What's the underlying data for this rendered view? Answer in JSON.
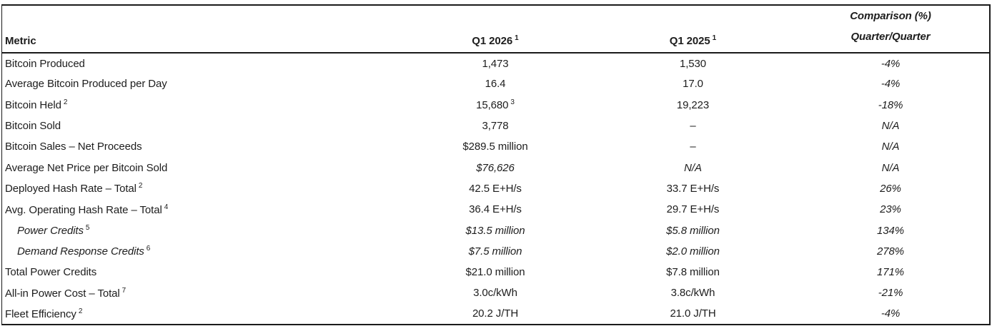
{
  "header": {
    "metric": "Metric",
    "q1_2026": "Q1 2026",
    "q1_2026_sup": "1",
    "q1_2025": "Q1 2025",
    "q1_2025_sup": "1",
    "comparison_line1": "Comparison (%)",
    "comparison_line2": "Quarter/Quarter"
  },
  "rows": [
    {
      "metric": "Bitcoin Produced",
      "q2026": "1,473",
      "q2025": "1,530",
      "comp": "-4%"
    },
    {
      "metric": "Average Bitcoin Produced per Day",
      "q2026": "16.4",
      "q2025": "17.0",
      "comp": "-4%"
    },
    {
      "metric": "Bitcoin Held",
      "metric_sup": "2",
      "q2026": "15,680",
      "q2026_sup": "3",
      "q2025": "19,223",
      "comp": "-18%"
    },
    {
      "metric": "Bitcoin Sold",
      "q2026": "3,778",
      "q2025": "–",
      "comp": "N/A"
    },
    {
      "metric": "Bitcoin Sales – Net Proceeds",
      "q2026": "$289.5 million",
      "q2025": "–",
      "comp": "N/A"
    },
    {
      "metric": "Average Net Price per Bitcoin Sold",
      "q2026": "$76,626",
      "q2025": "N/A",
      "comp": "N/A"
    },
    {
      "metric": "Deployed Hash Rate – Total",
      "metric_sup": "2",
      "q2026": "42.5 E+H/s",
      "q2025": "33.7 E+H/s",
      "comp": "26%"
    },
    {
      "metric": "Avg. Operating Hash Rate – Total",
      "metric_sup": "4",
      "q2026": "36.4 E+H/s",
      "q2025": "29.7 E+H/s",
      "comp": "23%"
    },
    {
      "metric": "Power Credits",
      "metric_sup": "5",
      "q2026": "$13.5 million",
      "q2025": "$5.8 million",
      "comp": "134%"
    },
    {
      "metric": "Demand Response Credits",
      "metric_sup": "6",
      "q2026": "$7.5 million",
      "q2025": "$2.0 million",
      "comp": "278%"
    },
    {
      "metric": "Total Power Credits",
      "q2026": "$21.0 million",
      "q2025": "$7.8 million",
      "comp": "171%"
    },
    {
      "metric": "All-in Power Cost – Total",
      "metric_sup": "7",
      "q2026": "3.0c/kWh",
      "q2025": "3.8c/kWh",
      "comp": "-21%"
    },
    {
      "metric": "Fleet Efficiency",
      "metric_sup": "2",
      "q2026": "20.2 J/TH",
      "q2025": "21.0 J/TH",
      "comp": "-4%"
    }
  ],
  "colors": {
    "text": "#1d1d1d",
    "border": "#1a1a1a",
    "background": "#ffffff"
  }
}
